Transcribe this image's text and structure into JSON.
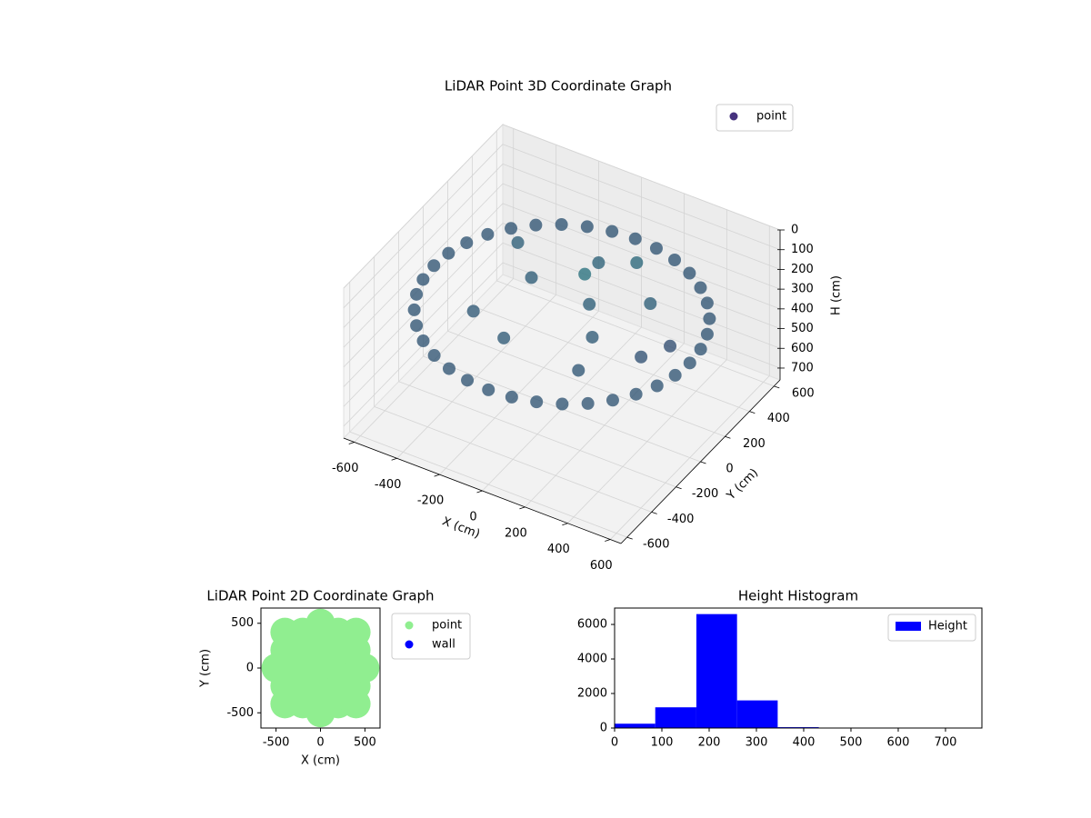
{
  "chart_data": [
    {
      "type": "scatter3d",
      "title": "LiDAR Point 3D Coordinate Graph",
      "x_label": "X (cm)",
      "y_label": "Y (cm)",
      "z_label": "H (cm)",
      "xlim": [
        -650,
        650
      ],
      "ylim": [
        -650,
        650
      ],
      "zlim": [
        0,
        760
      ],
      "z_inverted": true,
      "xticks": [
        -600,
        -400,
        -200,
        0,
        200,
        400,
        600
      ],
      "yticks": [
        -600,
        -400,
        -200,
        0,
        200,
        400,
        600
      ],
      "zticks": [
        0,
        100,
        200,
        300,
        400,
        500,
        600,
        700
      ],
      "colormap": [
        "#440154",
        "#2a8a8a"
      ],
      "legend": "upper right",
      "series": [
        {
          "name": "point",
          "color": "#46327e",
          "x": [
            600,
            591,
            564,
            520,
            460,
            386,
            300,
            205,
            104,
            0,
            -104,
            -205,
            -300,
            -386,
            -460,
            -520,
            -564,
            -591,
            -600,
            -591,
            -564,
            -520,
            -460,
            -386,
            -300,
            -205,
            -104,
            0,
            104,
            205,
            300,
            386,
            460,
            520,
            564,
            591,
            100,
            200,
            -200,
            -300,
            300,
            0,
            -100,
            400,
            450,
            150,
            -350,
            250,
            50
          ],
          "y": [
            0,
            104,
            205,
            300,
            386,
            460,
            520,
            564,
            591,
            600,
            591,
            564,
            520,
            460,
            386,
            300,
            205,
            104,
            0,
            -104,
            -205,
            -300,
            -386,
            -460,
            -520,
            -564,
            -591,
            -600,
            -591,
            -564,
            -520,
            -460,
            -386,
            -300,
            -205,
            -104,
            50,
            -100,
            100,
            -200,
            200,
            300,
            -300,
            -50,
            100,
            350,
            250,
            -300,
            100
          ],
          "z": [
            280,
            280,
            280,
            280,
            280,
            280,
            280,
            280,
            280,
            280,
            280,
            280,
            280,
            280,
            280,
            280,
            280,
            280,
            280,
            280,
            280,
            280,
            280,
            280,
            280,
            280,
            280,
            280,
            280,
            280,
            280,
            280,
            280,
            280,
            280,
            280,
            220,
            250,
            240,
            260,
            230,
            210,
            250,
            300,
            320,
            180,
            220,
            270,
            120
          ]
        }
      ]
    },
    {
      "type": "scatter",
      "title": "LiDAR Point 2D Coordinate Graph",
      "x_label": "X (cm)",
      "y_label": "Y (cm)",
      "xlim": [
        -670,
        670
      ],
      "ylim": [
        -670,
        670
      ],
      "xticks": [
        -500,
        0,
        500
      ],
      "yticks": [
        -500,
        0,
        500
      ],
      "legend": "outside upper right",
      "series": [
        {
          "name": "point",
          "color": "#90ee90",
          "x": [
            -400,
            -200,
            0,
            200,
            400,
            -400,
            -200,
            0,
            200,
            400,
            -400,
            -200,
            0,
            200,
            400,
            -400,
            -200,
            0,
            200,
            400,
            -400,
            -200,
            0,
            200,
            400,
            500,
            354,
            0,
            -354,
            -500,
            -354,
            0,
            354
          ],
          "y": [
            -400,
            -400,
            -400,
            -400,
            -400,
            -200,
            -200,
            -200,
            -200,
            -200,
            0,
            0,
            0,
            0,
            0,
            200,
            200,
            200,
            200,
            200,
            400,
            400,
            400,
            400,
            400,
            0,
            354,
            500,
            354,
            0,
            -354,
            -500,
            -354
          ]
        },
        {
          "name": "wall",
          "color": "#0000ff",
          "x": [],
          "y": []
        }
      ]
    },
    {
      "type": "histogram",
      "title": "Height Histogram",
      "xlim": [
        0,
        777
      ],
      "ylim": [
        0,
        6950
      ],
      "xticks": [
        0,
        100,
        200,
        300,
        400,
        500,
        600,
        700
      ],
      "yticks": [
        0,
        2000,
        4000,
        6000
      ],
      "legend": "upper right",
      "series": [
        {
          "name": "Height",
          "color": "#0000ff",
          "bins": [
            0,
            86,
            173,
            259,
            345,
            432,
            518,
            604,
            691,
            777
          ],
          "values": [
            250,
            1200,
            6600,
            1600,
            50,
            10,
            5,
            3,
            2
          ]
        }
      ]
    }
  ]
}
